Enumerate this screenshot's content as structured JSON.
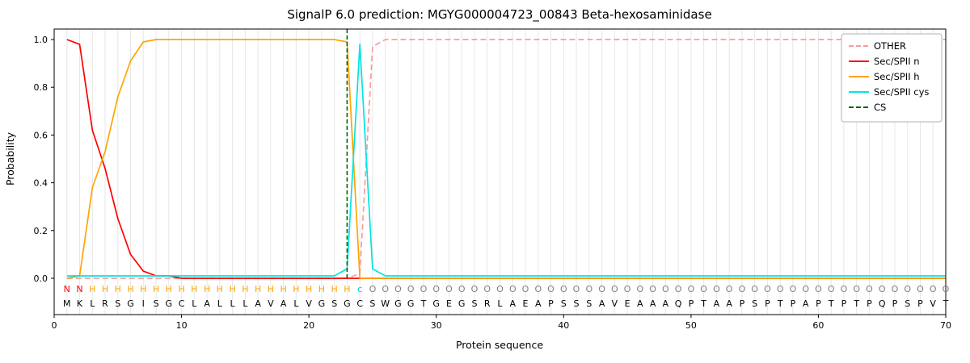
{
  "title": "SignalP 6.0 prediction: MGYG000004723_00843 Beta-hexosaminidase",
  "xlabel": "Protein sequence",
  "ylabel": "Probability",
  "legend": [
    {
      "label": "OTHER",
      "color": "#ff9999",
      "dash": "dashed"
    },
    {
      "label": "Sec/SPII n",
      "color": "#ff0000",
      "dash": "solid"
    },
    {
      "label": "Sec/SPII h",
      "color": "#ffa500",
      "dash": "solid"
    },
    {
      "label": "Sec/SPII cys",
      "color": "#00e5e5",
      "dash": "solid"
    },
    {
      "label": "CS",
      "color": "#006400",
      "dash": "dashed"
    }
  ],
  "chart_data": {
    "type": "line",
    "title": "SignalP 6.0 prediction: MGYG000004723_00843 Beta-hexosaminidase",
    "xlabel": "Protein sequence",
    "ylabel": "Probability",
    "xlim": [
      0,
      70
    ],
    "ylim": [
      0,
      1.0
    ],
    "grid": "vertical-per-residue",
    "legend_position": "upper-right",
    "x_ticks": [
      {
        "value": 0,
        "label": "0"
      },
      {
        "value": 10,
        "label": "10"
      },
      {
        "value": 20,
        "label": "20"
      },
      {
        "value": 30,
        "label": "30"
      },
      {
        "value": 40,
        "label": "40"
      },
      {
        "value": 50,
        "label": "50"
      },
      {
        "value": 60,
        "label": "60"
      },
      {
        "value": 70,
        "label": "70"
      }
    ],
    "y_ticks": [
      {
        "value": 0.0,
        "label": "0.0"
      },
      {
        "value": 0.2,
        "label": "0.2"
      },
      {
        "value": 0.4,
        "label": "0.4"
      },
      {
        "value": 0.6,
        "label": "0.6"
      },
      {
        "value": 0.8,
        "label": "0.8"
      },
      {
        "value": 1.0,
        "label": "1.0"
      }
    ],
    "sequence": "MKLRSGISGCLALLLAVALVGSGCSWGGTGEGSRLAEAPSSSAVEAAAQPTAAPSPTPAPTPTPQPSPVT",
    "annotation": "NNHHHHHHHHHHHHHHHHHHHHHcOOOOOOOOOOOOOOOOOOOOOOOOOOOOOOOOOOOOOOOOOOOOOO",
    "annotation_colors": {
      "N": "#ff0000",
      "H": "#ffa500",
      "c": "#00cccc",
      "O": "#7f7f7f"
    },
    "sequence_color": "#000000",
    "cs_position": 23,
    "cs_marker": {
      "name": "CS",
      "color": "#006400",
      "dash": "dashed"
    },
    "series": [
      {
        "name": "OTHER",
        "color": "#ff9999",
        "dash": "dashed",
        "values": [
          0,
          0,
          0,
          0,
          0,
          0,
          0,
          0,
          0,
          0,
          0,
          0,
          0,
          0,
          0,
          0,
          0,
          0,
          0,
          0,
          0,
          0,
          0,
          0.02,
          0.97,
          1,
          1,
          1,
          1,
          1,
          1,
          1,
          1,
          1,
          1,
          1,
          1,
          1,
          1,
          1,
          1,
          1,
          1,
          1,
          1,
          1,
          1,
          1,
          1,
          1,
          1,
          1,
          1,
          1,
          1,
          1,
          1,
          1,
          1,
          1,
          1,
          1,
          1,
          1,
          1,
          1,
          1,
          1,
          1,
          1
        ]
      },
      {
        "name": "Sec/SPII n",
        "color": "#ff0000",
        "dash": "solid",
        "values": [
          1,
          0.98,
          0.62,
          0.46,
          0.25,
          0.1,
          0.03,
          0.01,
          0.01,
          0,
          0,
          0,
          0,
          0,
          0,
          0,
          0,
          0,
          0,
          0,
          0,
          0,
          0,
          0,
          0,
          0,
          0,
          0,
          0,
          0,
          0,
          0,
          0,
          0,
          0,
          0,
          0,
          0,
          0,
          0,
          0,
          0,
          0,
          0,
          0,
          0,
          0,
          0,
          0,
          0,
          0,
          0,
          0,
          0,
          0,
          0,
          0,
          0,
          0,
          0,
          0,
          0,
          0,
          0,
          0,
          0,
          0,
          0,
          0,
          0
        ]
      },
      {
        "name": "Sec/SPII h",
        "color": "#ffa500",
        "dash": "solid",
        "values": [
          0,
          0.01,
          0.38,
          0.53,
          0.76,
          0.91,
          0.99,
          1,
          1,
          1,
          1,
          1,
          1,
          1,
          1,
          1,
          1,
          1,
          1,
          1,
          1,
          1,
          0.99,
          0,
          0,
          0,
          0,
          0,
          0,
          0,
          0,
          0,
          0,
          0,
          0,
          0,
          0,
          0,
          0,
          0,
          0,
          0,
          0,
          0,
          0,
          0,
          0,
          0,
          0,
          0,
          0,
          0,
          0,
          0,
          0,
          0,
          0,
          0,
          0,
          0,
          0,
          0,
          0,
          0,
          0,
          0,
          0,
          0,
          0,
          0
        ]
      },
      {
        "name": "Sec/SPII cys",
        "color": "#00e5e5",
        "dash": "solid",
        "values": [
          0.01,
          0.01,
          0.01,
          0.01,
          0.01,
          0.01,
          0.01,
          0.01,
          0.01,
          0.01,
          0.01,
          0.01,
          0.01,
          0.01,
          0.01,
          0.01,
          0.01,
          0.01,
          0.01,
          0.01,
          0.01,
          0.01,
          0.04,
          0.98,
          0.04,
          0.01,
          0.01,
          0.01,
          0.01,
          0.01,
          0.01,
          0.01,
          0.01,
          0.01,
          0.01,
          0.01,
          0.01,
          0.01,
          0.01,
          0.01,
          0.01,
          0.01,
          0.01,
          0.01,
          0.01,
          0.01,
          0.01,
          0.01,
          0.01,
          0.01,
          0.01,
          0.01,
          0.01,
          0.01,
          0.01,
          0.01,
          0.01,
          0.01,
          0.01,
          0.01,
          0.01,
          0.01,
          0.01,
          0.01,
          0.01,
          0.01,
          0.01,
          0.01,
          0.01,
          0.01
        ]
      }
    ]
  }
}
